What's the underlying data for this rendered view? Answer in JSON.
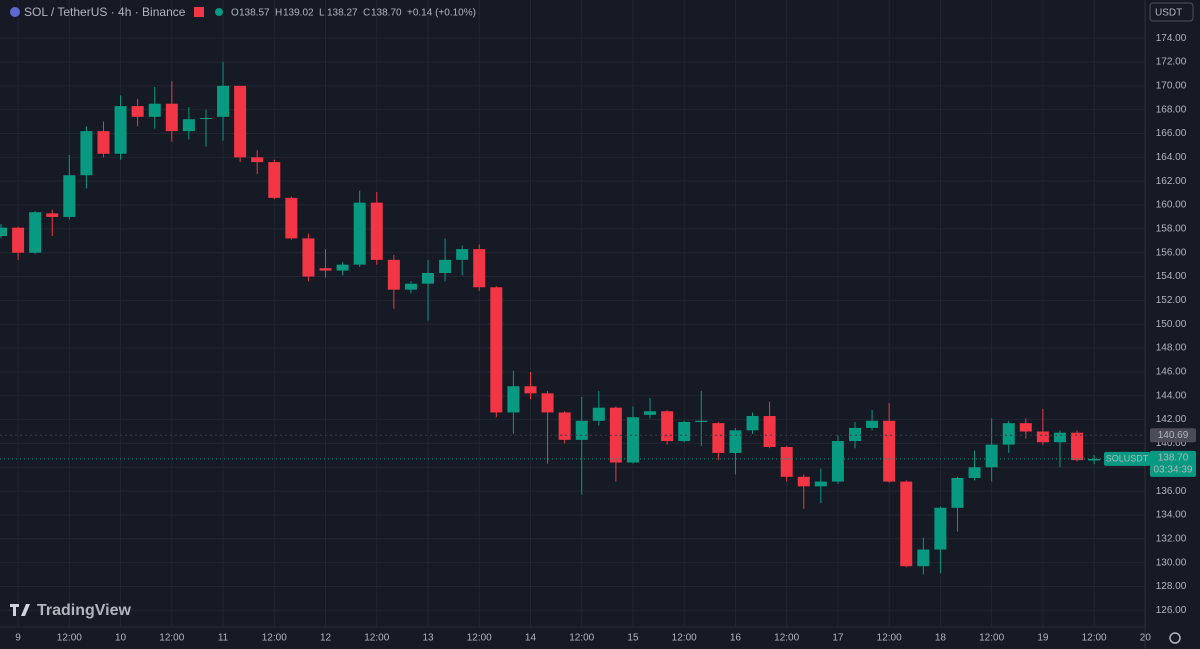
{
  "header": {
    "symbol": "SOL / TetherUS · 4h · Binance",
    "ohlc": [
      {
        "label": "O",
        "value": "138.57"
      },
      {
        "label": "H",
        "value": "139.02"
      },
      {
        "label": "L",
        "value": "138.27"
      },
      {
        "label": "C",
        "value": "138.70"
      }
    ],
    "change": "+0.14 (+0.10%)"
  },
  "currency": "USDT",
  "watermark": "TradingView",
  "chart_data": {
    "type": "candlestick",
    "categories": [
      null,
      "9",
      null,
      null,
      "12:00",
      null,
      null,
      "10",
      null,
      null,
      "12:00",
      null,
      null,
      "11",
      null,
      null,
      "12:00",
      null,
      null,
      "12",
      null,
      null,
      "12:00",
      null,
      null,
      "13",
      null,
      null,
      "12:00",
      null,
      null,
      "14",
      null,
      null,
      "12:00",
      null,
      null,
      "15",
      null,
      null,
      "12:00",
      null,
      null,
      "16",
      null,
      null,
      "12:00",
      null,
      null,
      "17",
      null,
      null,
      "12:00",
      null,
      null,
      "18",
      null,
      null,
      "12:00",
      null,
      null,
      "19",
      null,
      null,
      "12:00",
      null,
      null,
      "20"
    ],
    "open": [
      157.4,
      158.1,
      156.0,
      159.3,
      159.0,
      162.5,
      166.2,
      164.3,
      168.3,
      167.4,
      168.5,
      166.2,
      167.3,
      167.4,
      170.0,
      164.0,
      163.6,
      160.6,
      157.2,
      154.7,
      154.5,
      155.0,
      160.2,
      155.4,
      152.9,
      153.4,
      154.3,
      155.4,
      156.3,
      153.1,
      142.6,
      144.8,
      144.2,
      142.6,
      140.3,
      141.9,
      143.0,
      138.4,
      142.4,
      142.7,
      140.2,
      141.8,
      141.7,
      139.2,
      141.1,
      142.3,
      139.7,
      137.2,
      136.4,
      136.8,
      140.2,
      141.3,
      141.9,
      136.8,
      129.7,
      131.1,
      134.6,
      137.1,
      138.0,
      139.9,
      141.7,
      141.0,
      140.1,
      140.9,
      138.57,
      null,
      null,
      null
    ],
    "high": [
      158.4,
      158.2,
      159.5,
      159.6,
      164.2,
      166.6,
      167.0,
      169.2,
      168.9,
      169.9,
      170.4,
      168.2,
      168.0,
      172.0,
      170.0,
      164.6,
      163.8,
      160.7,
      157.6,
      156.3,
      155.2,
      161.2,
      161.1,
      155.8,
      153.6,
      155.4,
      157.2,
      156.6,
      156.7,
      153.2,
      146.1,
      146.0,
      144.4,
      142.7,
      143.9,
      144.4,
      143.1,
      143.1,
      143.8,
      142.8,
      141.9,
      144.4,
      141.8,
      141.3,
      142.6,
      143.5,
      139.8,
      137.4,
      137.9,
      140.7,
      141.8,
      142.8,
      143.4,
      136.9,
      132.1,
      134.7,
      137.2,
      139.4,
      142.1,
      141.9,
      142.1,
      142.9,
      141.1,
      141.1,
      139.02,
      null,
      null,
      null
    ],
    "low": [
      157.2,
      155.4,
      155.9,
      157.4,
      158.8,
      161.4,
      164.0,
      163.8,
      166.6,
      166.4,
      165.3,
      165.5,
      164.9,
      165.4,
      163.6,
      162.6,
      160.5,
      157.1,
      153.6,
      153.9,
      154.1,
      154.8,
      155.0,
      151.3,
      152.6,
      150.3,
      153.6,
      154.1,
      152.8,
      142.2,
      140.8,
      143.7,
      138.3,
      140.0,
      135.7,
      141.5,
      136.8,
      138.3,
      142.1,
      139.9,
      140.1,
      139.8,
      138.6,
      137.4,
      140.8,
      139.6,
      136.8,
      134.5,
      135.0,
      136.6,
      139.6,
      141.1,
      136.7,
      129.6,
      129.0,
      129.1,
      132.6,
      136.9,
      136.8,
      139.2,
      140.4,
      139.9,
      138.0,
      138.5,
      138.27,
      null,
      null,
      null
    ],
    "close": [
      158.1,
      156.0,
      159.4,
      159.0,
      162.5,
      166.2,
      164.3,
      168.3,
      167.4,
      168.5,
      166.2,
      167.2,
      167.3,
      170.0,
      164.0,
      163.6,
      160.6,
      157.2,
      154.0,
      154.5,
      155.0,
      160.2,
      155.4,
      152.9,
      153.4,
      154.3,
      155.4,
      156.3,
      153.1,
      142.6,
      144.8,
      144.2,
      142.6,
      140.3,
      141.9,
      143.0,
      138.4,
      142.2,
      142.7,
      140.2,
      141.8,
      141.9,
      139.2,
      141.1,
      142.3,
      139.7,
      137.2,
      136.4,
      136.8,
      140.2,
      141.3,
      141.9,
      136.8,
      129.7,
      131.1,
      134.6,
      137.1,
      138.0,
      139.9,
      141.7,
      141.0,
      140.1,
      140.9,
      138.6,
      138.7,
      null,
      null,
      null
    ],
    "up_color": "#089981",
    "down_color": "#f23645",
    "ylim": [
      124.6,
      177.2
    ],
    "yticks": [
      {
        "value": 126,
        "label": "126.00"
      },
      {
        "value": 128,
        "label": "128.00"
      },
      {
        "value": 130,
        "label": "130.00"
      },
      {
        "value": 132,
        "label": "132.00"
      },
      {
        "value": 134,
        "label": "134.00"
      },
      {
        "value": 136,
        "label": "136.00"
      },
      {
        "value": 138,
        "label": "138.00"
      },
      {
        "value": 140,
        "label": "140.00"
      },
      {
        "value": 142,
        "label": "142.00"
      },
      {
        "value": 144,
        "label": "144.00"
      },
      {
        "value": 146,
        "label": "146.00"
      },
      {
        "value": 148,
        "label": "148.00"
      },
      {
        "value": 150,
        "label": "150.00"
      },
      {
        "value": 152,
        "label": "152.00"
      },
      {
        "value": 154,
        "label": "154.00"
      },
      {
        "value": 156,
        "label": "156.00"
      },
      {
        "value": 158,
        "label": "158.00"
      },
      {
        "value": 160,
        "label": "160.00"
      },
      {
        "value": 162,
        "label": "162.00"
      },
      {
        "value": 164,
        "label": "164.00"
      },
      {
        "value": 166,
        "label": "166.00"
      },
      {
        "value": 168,
        "label": "168.00"
      },
      {
        "value": 170,
        "label": "170.00"
      },
      {
        "value": 172,
        "label": "172.00"
      },
      {
        "value": 174,
        "label": "174.00"
      }
    ],
    "grid": true,
    "price_line": {
      "value": 138.7,
      "label": "138.70",
      "symbol": "SOLUSDT",
      "countdown": "03:34:39"
    },
    "marker_line": {
      "value": 140.69
    }
  }
}
